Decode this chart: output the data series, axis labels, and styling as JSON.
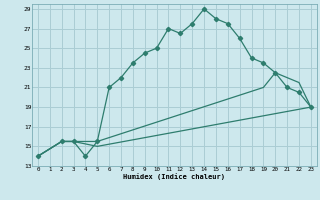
{
  "xlabel": "Humidex (Indice chaleur)",
  "background_color": "#cde8ed",
  "grid_color": "#aacdd4",
  "line_color": "#2e7d6e",
  "xlim": [
    -0.5,
    23.5
  ],
  "ylim": [
    13,
    29.5
  ],
  "yticks": [
    13,
    15,
    17,
    19,
    21,
    23,
    25,
    27,
    29
  ],
  "xticks": [
    0,
    1,
    2,
    3,
    4,
    5,
    6,
    7,
    8,
    9,
    10,
    11,
    12,
    13,
    14,
    15,
    16,
    17,
    18,
    19,
    20,
    21,
    22,
    23
  ],
  "line1_x": [
    0,
    2,
    3,
    4,
    5,
    6,
    7,
    8,
    9,
    10,
    11,
    12,
    13,
    14,
    15,
    16,
    17,
    18,
    19,
    20,
    21,
    22,
    23
  ],
  "line1_y": [
    14,
    15.5,
    15.5,
    14,
    15.5,
    21,
    22,
    23.5,
    24.5,
    25,
    27,
    26.5,
    27.5,
    29,
    28,
    27.5,
    26,
    24,
    23.5,
    22.5,
    21,
    20.5,
    19
  ],
  "line2_x": [
    0,
    2,
    3,
    5,
    19,
    20,
    22,
    23
  ],
  "line2_y": [
    14,
    15.5,
    15.5,
    15.5,
    21,
    22.5,
    21.5,
    19
  ],
  "line3_x": [
    0,
    2,
    3,
    5,
    23
  ],
  "line3_y": [
    14,
    15.5,
    15.5,
    15,
    19
  ]
}
